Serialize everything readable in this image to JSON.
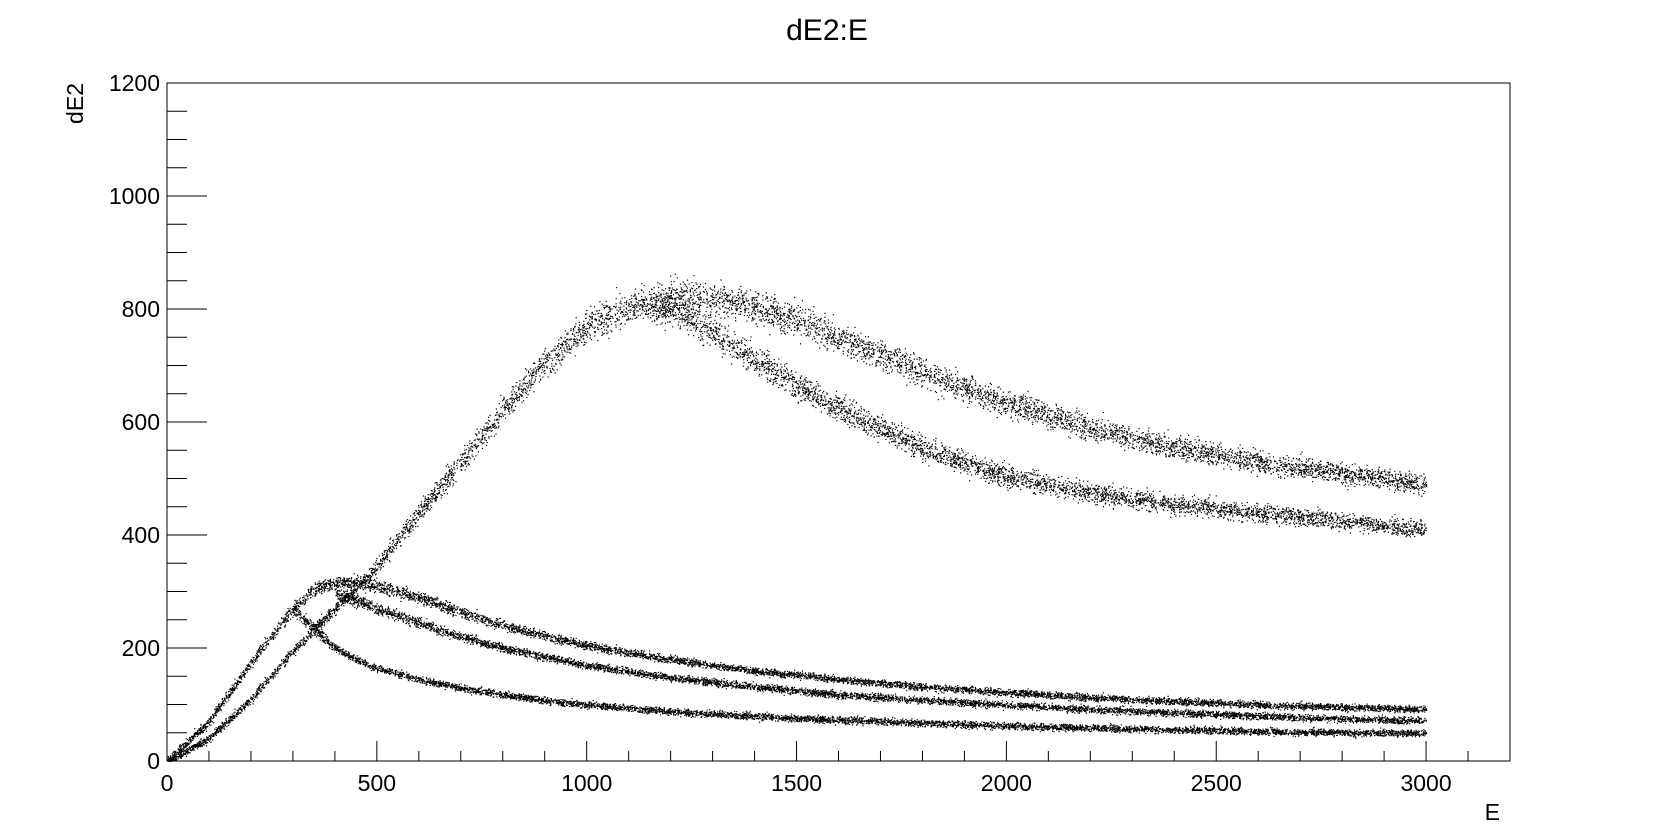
{
  "chart_data": {
    "type": "scatter",
    "title": "dE2:E",
    "xlabel": "E",
    "ylabel": "dE2",
    "xlim": [
      0,
      3200
    ],
    "ylim": [
      0,
      1200
    ],
    "x_ticks": [
      0,
      500,
      1000,
      1500,
      2000,
      2500,
      3000
    ],
    "x_tick_labels": [
      "0",
      "500",
      "1000",
      "1500",
      "2000",
      "2500",
      "3000"
    ],
    "y_ticks": [
      0,
      200,
      400,
      600,
      800,
      1000,
      1200
    ],
    "y_tick_labels": [
      "0",
      "200",
      "400",
      "600",
      "800",
      "1000",
      "1200"
    ],
    "grid": false,
    "marker_color": "#000000",
    "series": [
      {
        "x": [
          0,
          100,
          200,
          300,
          400,
          500,
          600,
          700,
          800,
          900,
          1000,
          1100,
          1200,
          1300,
          1400,
          1500,
          1600,
          1700,
          1800,
          1900,
          2000,
          2200,
          2400,
          2600,
          2800,
          3000
        ],
        "y": [
          0,
          40,
          110,
          195,
          270,
          345,
          440,
          530,
          620,
          705,
          770,
          805,
          820,
          820,
          805,
          780,
          750,
          720,
          690,
          660,
          635,
          590,
          555,
          530,
          510,
          490
        ]
      },
      {
        "x": [
          1150,
          1200,
          1300,
          1400,
          1500,
          1600,
          1700,
          1800,
          1900,
          2000,
          2200,
          2400,
          2600,
          2800,
          3000
        ],
        "y": [
          810,
          800,
          760,
          710,
          665,
          625,
          590,
          555,
          530,
          505,
          475,
          455,
          440,
          425,
          410
        ]
      },
      {
        "x": [
          0,
          100,
          200,
          300,
          350,
          400,
          450,
          500,
          600,
          700,
          800,
          900,
          1000,
          1200,
          1400,
          1600,
          1800,
          2000,
          2200,
          2400,
          2600,
          2800,
          3000
        ],
        "y": [
          0,
          70,
          175,
          270,
          305,
          315,
          318,
          310,
          290,
          265,
          240,
          222,
          205,
          180,
          160,
          145,
          132,
          122,
          113,
          106,
          100,
          96,
          92
        ]
      },
      {
        "x": [
          400,
          450,
          500,
          600,
          700,
          800,
          900,
          1000,
          1200,
          1400,
          1600,
          1800,
          2000,
          2200,
          2400,
          2600,
          2800,
          3000
        ],
        "y": [
          300,
          285,
          270,
          245,
          220,
          200,
          185,
          170,
          148,
          132,
          118,
          108,
          100,
          92,
          86,
          80,
          75,
          72
        ]
      },
      {
        "x": [
          300,
          350,
          400,
          450,
          500,
          600,
          700,
          800,
          900,
          1000,
          1200,
          1400,
          1600,
          1800,
          2000,
          2200,
          2400,
          2600,
          2800,
          3000
        ],
        "y": [
          270,
          235,
          200,
          180,
          165,
          145,
          130,
          118,
          108,
          100,
          88,
          80,
          73,
          68,
          63,
          59,
          56,
          53,
          51,
          50
        ]
      }
    ]
  }
}
